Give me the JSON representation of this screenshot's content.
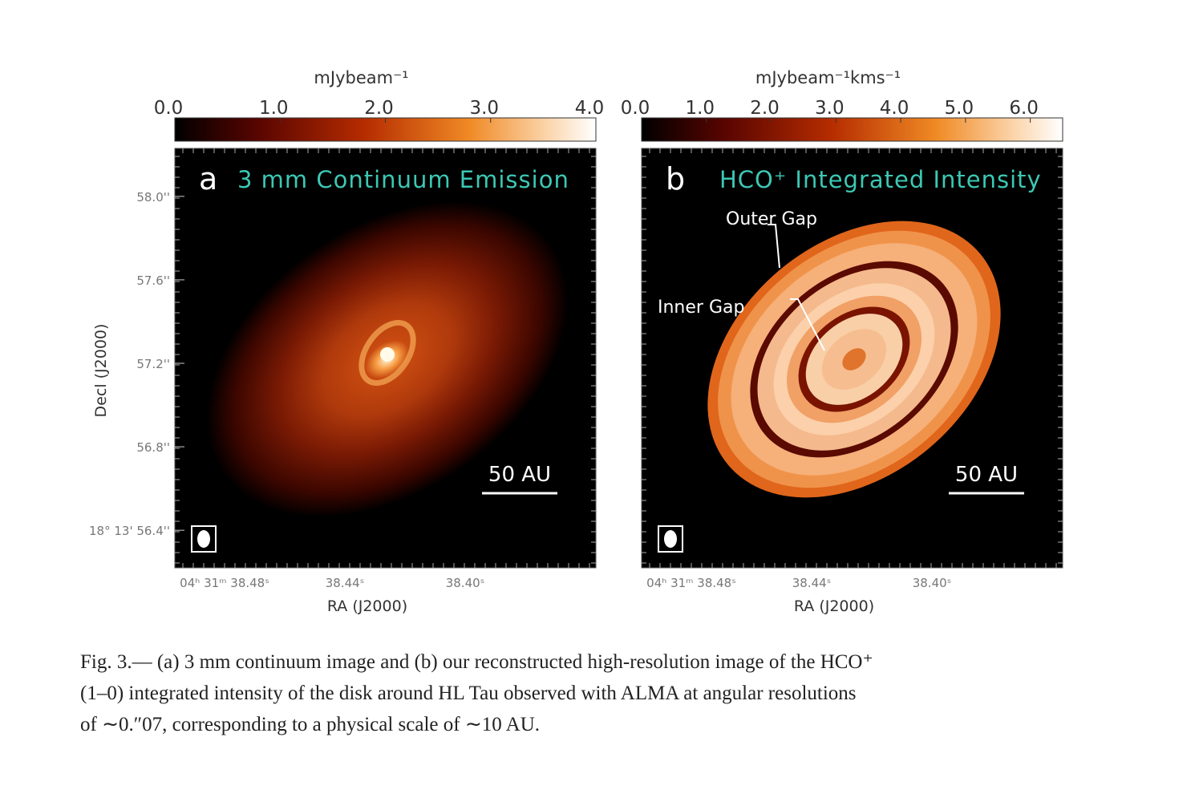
{
  "figure": {
    "panels": [
      {
        "letter": "a",
        "title": "3 mm Continuum Emission",
        "colorbar": {
          "label": "mJybeam⁻¹",
          "lim": [
            0,
            4
          ],
          "ticks": [
            {
              "value": 0,
              "label": "0.0"
            },
            {
              "value": 1,
              "label": "1.0"
            },
            {
              "value": 2,
              "label": "2.0"
            },
            {
              "value": 3,
              "label": "3.0"
            },
            {
              "value": 4,
              "label": "4.0"
            }
          ]
        },
        "scale_bar": "50 AU",
        "y_label": "Decl (J2000)",
        "ylim": [
          56.22,
          58.23
        ],
        "yticks": [
          {
            "value": 58.0,
            "label": "58.0''"
          },
          {
            "value": 57.6,
            "label": "57.6''"
          },
          {
            "value": 57.2,
            "label": "57.2''"
          },
          {
            "value": 56.8,
            "label": "56.8''"
          },
          {
            "value": 56.4,
            "label": "18° 13' 56.4''"
          }
        ],
        "x_label": "RA (J2000)",
        "xticks": [
          "04ʰ 31ᵐ 38.48ˢ",
          "38.44ˢ",
          "38.40ˢ"
        ]
      },
      {
        "letter": "b",
        "title": "HCO⁺ Integrated Intensity",
        "colorbar": {
          "label": "mJybeam⁻¹kms⁻¹",
          "lim": [
            0,
            6.5
          ],
          "ticks": [
            {
              "value": 0,
              "label": "0.0"
            },
            {
              "value": 1,
              "label": "1.0"
            },
            {
              "value": 2,
              "label": "2.0"
            },
            {
              "value": 3,
              "label": "3.0"
            },
            {
              "value": 4,
              "label": "4.0"
            },
            {
              "value": 5,
              "label": "5.0"
            },
            {
              "value": 6,
              "label": "6.0"
            }
          ]
        },
        "scale_bar": "50 AU",
        "annotations": [
          "Outer Gap",
          "Inner Gap"
        ],
        "x_label": "RA (J2000)",
        "xticks": [
          "04ʰ 31ᵐ 38.48ˢ",
          "38.44ˢ",
          "38.40ˢ"
        ]
      }
    ],
    "caption": [
      "Fig. 3.— (a) 3 mm continuum image and (b) our reconstructed high-resolution image of the HCO⁺",
      "(1–0) integrated intensity of the disk around HL Tau observed with ALMA at angular resolutions",
      "of ∼0.″07, corresponding to a physical scale of ∼10 AU."
    ]
  }
}
